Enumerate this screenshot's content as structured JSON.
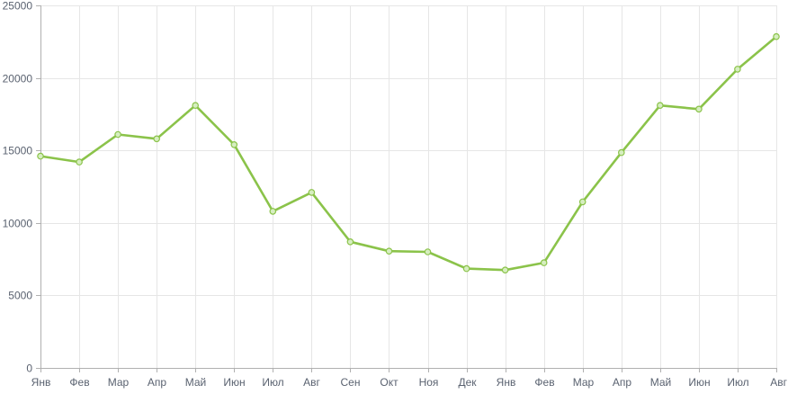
{
  "chart_data": {
    "type": "line",
    "title": "",
    "xlabel": "",
    "ylabel": "",
    "categories": [
      "Янв",
      "Фев",
      "Мар",
      "Апр",
      "Май",
      "Июн",
      "Июл",
      "Авг",
      "Сен",
      "Окт",
      "Ноя",
      "Дек",
      "Янв",
      "Фев",
      "Мар",
      "Апр",
      "Май",
      "Июн",
      "Июл",
      "Авг"
    ],
    "series": [
      {
        "values": [
          14600,
          14200,
          16100,
          15800,
          18100,
          15400,
          10800,
          12100,
          8700,
          8050,
          8000,
          6850,
          6750,
          7250,
          11450,
          14850,
          18100,
          17850,
          20600,
          22850
        ]
      }
    ],
    "ylim": [
      0,
      25000
    ],
    "yticks": [
      "0",
      "5000",
      "10000",
      "15000",
      "20000",
      "25000"
    ],
    "grid": true,
    "legend": "none",
    "colors": {
      "line": "#8bc34a",
      "point_fill": "#d6eec0",
      "grid": "#e6e6e6",
      "tick_text": "#5a6270"
    }
  }
}
